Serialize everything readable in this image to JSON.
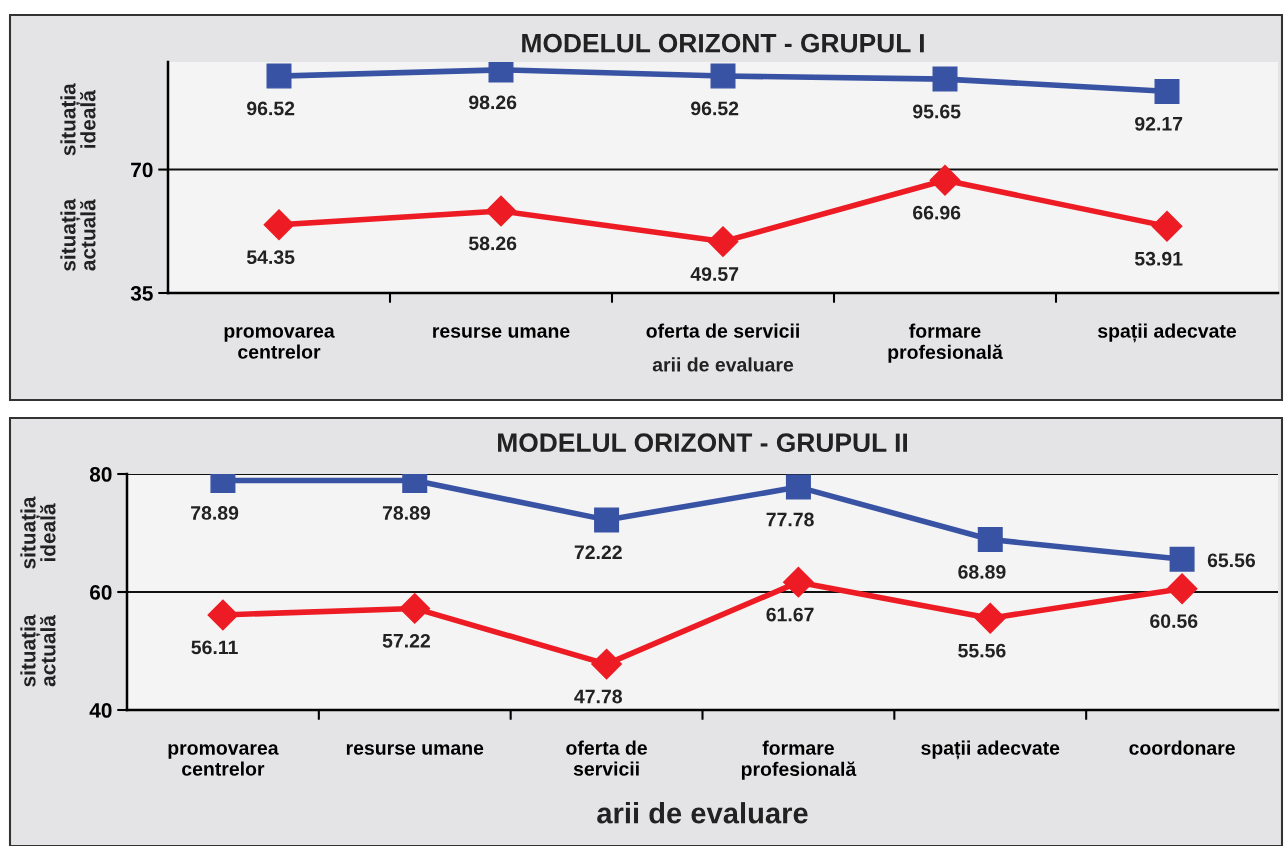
{
  "chart_data": [
    {
      "type": "line",
      "title": "MODELUL ORIZONT - GRUPUL I",
      "xlabel": "arii de evaluare",
      "categories": [
        "promovarea\ncentrelor",
        "resurse umane",
        "oferta de servicii",
        "formare\nprofesională",
        "spații adecvate"
      ],
      "series": [
        {
          "color": "#3953a4",
          "marker": "square",
          "values": [
            96.52,
            98.26,
            96.52,
            95.65,
            92.17
          ]
        },
        {
          "color": "#ed1c24",
          "marker": "diamond",
          "values": [
            54.35,
            58.26,
            49.57,
            66.96,
            53.91
          ]
        }
      ],
      "ylim": [
        35,
        100.5
      ],
      "yticks": [
        35,
        70
      ],
      "grid": "y",
      "data_labels": true,
      "legend": false,
      "annotations": [
        "situația\nideală",
        "situația\nactuală"
      ]
    },
    {
      "type": "line",
      "title": "MODELUL ORIZONT - GRUPUL II",
      "xlabel": "arii de evaluare",
      "categories": [
        "promovarea\ncentrelor",
        "resurse umane",
        "oferta de\nservicii",
        "formare\nprofesională",
        "spații adecvate",
        "coordonare"
      ],
      "series": [
        {
          "color": "#3953a4",
          "marker": "square",
          "values": [
            78.89,
            78.89,
            72.22,
            77.78,
            68.89,
            65.56
          ]
        },
        {
          "color": "#ed1c24",
          "marker": "diamond",
          "values": [
            56.11,
            57.22,
            47.78,
            61.67,
            55.56,
            60.56
          ]
        }
      ],
      "ylim": [
        40,
        80
      ],
      "yticks": [
        40,
        60,
        80
      ],
      "grid": "y",
      "data_labels": true,
      "legend": false,
      "annotations": [
        "situația\nideală",
        "situația\nactuală"
      ]
    }
  ]
}
